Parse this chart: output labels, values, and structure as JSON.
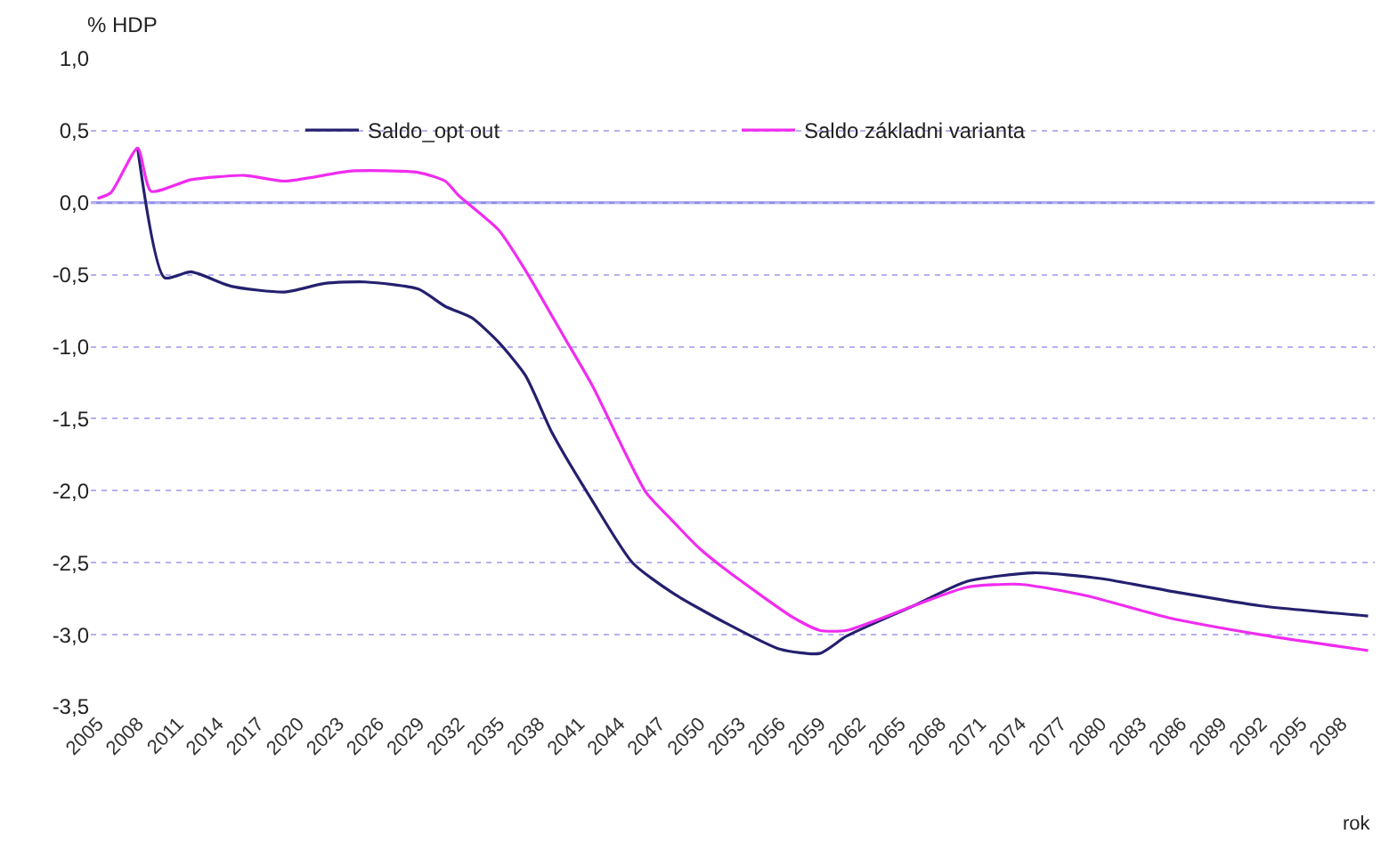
{
  "chart_data": {
    "type": "line",
    "xlabel": "rok",
    "ylabel": "% HDP",
    "xlim": [
      2004.5,
      2100.5
    ],
    "xticks": [
      2005,
      2008,
      2011,
      2014,
      2017,
      2020,
      2023,
      2026,
      2029,
      2032,
      2035,
      2038,
      2041,
      2044,
      2047,
      2050,
      2053,
      2056,
      2059,
      2062,
      2065,
      2068,
      2071,
      2074,
      2077,
      2080,
      2083,
      2086,
      2089,
      2092,
      2095,
      2098
    ],
    "ylim": [
      -3.5,
      1.0
    ],
    "yticks": [
      {
        "value": 1.0,
        "label": "1,0"
      },
      {
        "value": 0.5,
        "label": "0,5"
      },
      {
        "value": 0.0,
        "label": "0,0"
      },
      {
        "value": -0.5,
        "label": "-0,5"
      },
      {
        "value": -1.0,
        "label": "-1,0"
      },
      {
        "value": -1.5,
        "label": "-1,5"
      },
      {
        "value": -2.0,
        "label": "-2,0"
      },
      {
        "value": -2.5,
        "label": "-2,5"
      },
      {
        "value": -3.0,
        "label": "-3,0"
      },
      {
        "value": -3.5,
        "label": "-3,5"
      }
    ],
    "grid": "y",
    "legend": "top",
    "ref_lines": [
      {
        "axis": "y",
        "value": 0,
        "color": "#8c8ce8"
      }
    ],
    "line_style": "solid",
    "marker": "none",
    "series": [
      {
        "name": "Saldo_opt out",
        "color": "#24206e",
        "x": [
          2008,
          2010,
          2012,
          2015,
          2019,
          2022,
          2025,
          2029,
          2031,
          2033,
          2035,
          2037,
          2039,
          2042,
          2045,
          2048,
          2052,
          2056,
          2059,
          2061,
          2066,
          2070,
          2075,
          2080,
          2086,
          2092,
          2100
        ],
        "values": [
          0.38,
          -0.52,
          -0.48,
          -0.58,
          -0.62,
          -0.56,
          -0.55,
          -0.6,
          -0.72,
          -0.8,
          -0.97,
          -1.2,
          -1.6,
          -2.07,
          -2.5,
          -2.71,
          -2.92,
          -3.1,
          -3.13,
          -3.01,
          -2.8,
          -2.63,
          -2.57,
          -2.61,
          -2.71,
          -2.8,
          -2.87
        ]
      },
      {
        "name": "Saldo základni varianta",
        "color": "#f02cf0",
        "x": [
          2005,
          2006,
          2008,
          2009,
          2012,
          2016,
          2019,
          2024,
          2029,
          2031,
          2032,
          2035,
          2037,
          2040,
          2042,
          2046,
          2048,
          2050,
          2052,
          2057,
          2059,
          2061,
          2066,
          2070,
          2074,
          2079,
          2085,
          2092,
          2100
        ],
        "values": [
          0.03,
          0.07,
          0.38,
          0.08,
          0.16,
          0.19,
          0.15,
          0.22,
          0.21,
          0.15,
          0.05,
          -0.19,
          -0.47,
          -0.95,
          -1.27,
          -2.01,
          -2.21,
          -2.4,
          -2.55,
          -2.88,
          -2.97,
          -2.97,
          -2.8,
          -2.67,
          -2.65,
          -2.73,
          -2.88,
          -3.0,
          -3.11
        ]
      }
    ]
  }
}
